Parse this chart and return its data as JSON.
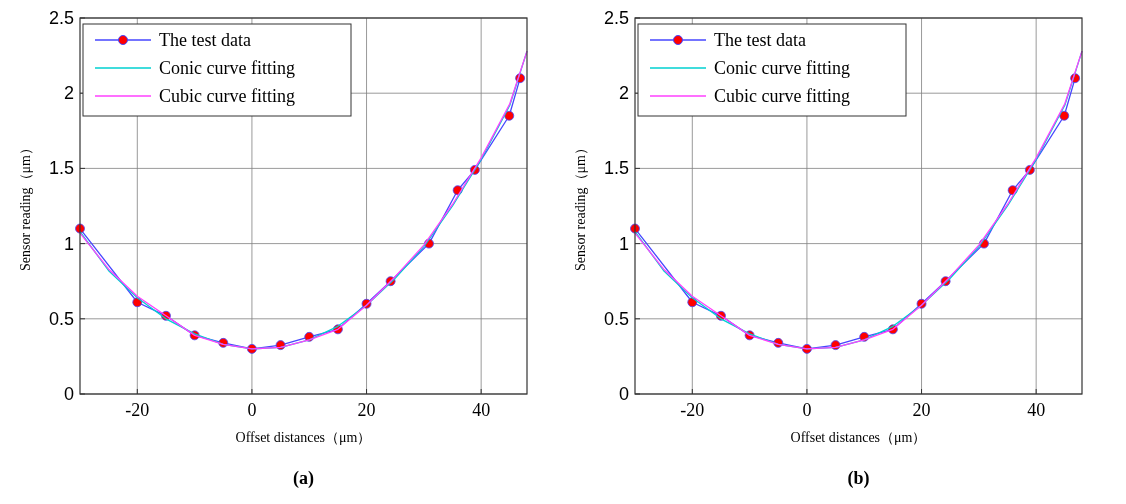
{
  "chart_data": [
    {
      "type": "line",
      "xlabel": "Offset distances（μm）",
      "ylabel": "Sensor reading（μm）",
      "annotations": [
        "(a)"
      ],
      "xlim": [
        -30,
        48
      ],
      "ylim": [
        0,
        2.5
      ],
      "xticks": [
        -20,
        0,
        20,
        40
      ],
      "yticks": [
        0,
        0.5,
        1,
        1.5,
        2,
        2.5
      ],
      "grid": true,
      "legend": "top left",
      "series": [
        {
          "name": "The test data",
          "color": "#4646ff",
          "marker": "circle",
          "colors": [
            "#ff0000",
            "#ff0000",
            "#ff0000",
            "#ff0000",
            "#ff0000",
            "#ff0000",
            "#ff0000",
            "#ff0000",
            "#ff0000",
            "#ff0000",
            "#ff0000",
            "#ff0000",
            "#ff0000",
            "#ff0000",
            "#ff0000",
            "#ff0000"
          ],
          "x": [
            -30,
            -20,
            -15,
            -10,
            -5,
            0,
            5,
            10,
            15,
            20,
            24.2,
            30.9,
            35.9,
            38.9,
            44.9,
            46.8
          ],
          "values": [
            1.1,
            0.61,
            0.52,
            0.39,
            0.34,
            0.3,
            0.325,
            0.38,
            0.43,
            0.6,
            0.75,
            1.0,
            1.355,
            1.49,
            1.85,
            2.1
          ]
        },
        {
          "name": "Conic curve fitting",
          "color": "#00d0d0",
          "marker": "none",
          "x": [
            -30,
            -25,
            -20,
            -15,
            -10,
            -5,
            0,
            5,
            10,
            15,
            20,
            25,
            30,
            35,
            40,
            45,
            48
          ],
          "values": [
            1.08,
            0.82,
            0.64,
            0.5,
            0.4,
            0.33,
            0.3,
            0.31,
            0.36,
            0.45,
            0.59,
            0.77,
            0.98,
            1.25,
            1.56,
            1.92,
            2.28
          ]
        },
        {
          "name": "Cubic curve fitting",
          "color": "#ff40ff",
          "marker": "none",
          "x": [
            -30,
            -25,
            -20,
            -15,
            -10,
            -5,
            0,
            5,
            10,
            15,
            20,
            25,
            30,
            35,
            40,
            45,
            48
          ],
          "values": [
            1.07,
            0.83,
            0.65,
            0.52,
            0.39,
            0.33,
            0.3,
            0.31,
            0.36,
            0.43,
            0.59,
            0.78,
            0.99,
            1.26,
            1.57,
            1.93,
            2.28
          ]
        }
      ]
    },
    {
      "type": "line",
      "xlabel": "Offset distances（μm）",
      "ylabel": "Sensor reading（μm）",
      "annotations": [
        "(b)"
      ],
      "xlim": [
        -30,
        48
      ],
      "ylim": [
        0,
        2.5
      ],
      "xticks": [
        -20,
        0,
        20,
        40
      ],
      "yticks": [
        0,
        0.5,
        1,
        1.5,
        2,
        2.5
      ],
      "grid": true,
      "legend": "top left",
      "series": [
        {
          "name": "The test data",
          "color": "#4646ff",
          "marker": "circle",
          "colors": [
            "#ff0000",
            "#ff0000",
            "#ff0000",
            "#ff0000",
            "#ff0000",
            "#ff0000",
            "#ff0000",
            "#ff0000",
            "#ff0000",
            "#ff0000",
            "#ff0000",
            "#ff0000",
            "#ff0000",
            "#ff0000",
            "#ff0000",
            "#ff0000"
          ],
          "x": [
            -30,
            -20,
            -15,
            -10,
            -5,
            0,
            5,
            10,
            15,
            20,
            24.2,
            30.9,
            35.9,
            38.9,
            44.9,
            46.8
          ],
          "values": [
            1.1,
            0.61,
            0.52,
            0.39,
            0.34,
            0.3,
            0.325,
            0.38,
            0.43,
            0.6,
            0.75,
            1.0,
            1.355,
            1.49,
            1.85,
            2.1
          ]
        },
        {
          "name": "Conic curve fitting",
          "color": "#00d0d0",
          "marker": "none",
          "x": [
            -30,
            -25,
            -20,
            -15,
            -10,
            -5,
            0,
            5,
            10,
            15,
            20,
            25,
            30,
            35,
            40,
            45,
            48
          ],
          "values": [
            1.08,
            0.82,
            0.64,
            0.5,
            0.4,
            0.33,
            0.3,
            0.31,
            0.36,
            0.45,
            0.59,
            0.77,
            0.98,
            1.25,
            1.56,
            1.92,
            2.28
          ]
        },
        {
          "name": "Cubic curve fitting",
          "color": "#ff40ff",
          "marker": "none",
          "x": [
            -30,
            -25,
            -20,
            -15,
            -10,
            -5,
            0,
            5,
            10,
            15,
            20,
            25,
            30,
            35,
            40,
            45,
            48
          ],
          "values": [
            1.07,
            0.83,
            0.65,
            0.52,
            0.39,
            0.33,
            0.3,
            0.31,
            0.36,
            0.43,
            0.59,
            0.78,
            0.99,
            1.26,
            1.57,
            1.93,
            2.28
          ]
        }
      ]
    }
  ]
}
